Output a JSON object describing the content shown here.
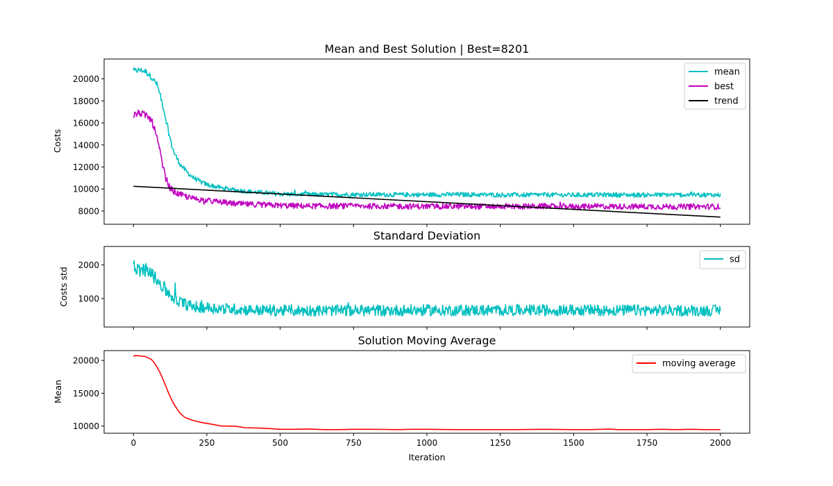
{
  "chart_data": [
    {
      "type": "line",
      "title": "Mean and Best Solution | Best=8201",
      "xlabel": "",
      "ylabel": "Costs",
      "xlim": [
        -100,
        2100
      ],
      "ylim": [
        6800,
        21800
      ],
      "yticks": [
        8000,
        10000,
        12000,
        14000,
        16000,
        18000,
        20000
      ],
      "xticks": [
        0,
        250,
        500,
        750,
        1000,
        1250,
        1500,
        1750,
        2000
      ],
      "show_xtick_labels": false,
      "grid": false,
      "legend_position": "top-right",
      "series": [
        {
          "name": "mean",
          "color": "#00bfbf",
          "noise": 260,
          "x": [
            0,
            20,
            40,
            60,
            80,
            90,
            100,
            110,
            120,
            130,
            140,
            160,
            180,
            200,
            225,
            250,
            275,
            300,
            350,
            400,
            450,
            500,
            600,
            700,
            800,
            900,
            1000,
            1100,
            1200,
            1300,
            1400,
            1500,
            1600,
            1700,
            1800,
            1900,
            2000
          ],
          "values": [
            20700,
            20800,
            20700,
            20200,
            19500,
            18600,
            17600,
            16400,
            15100,
            14000,
            13200,
            12200,
            11600,
            11100,
            10700,
            10400,
            10250,
            10100,
            9900,
            9750,
            9650,
            9550,
            9500,
            9500,
            9500,
            9480,
            9480,
            9500,
            9480,
            9450,
            9480,
            9450,
            9480,
            9460,
            9470,
            9470,
            9470
          ]
        },
        {
          "name": "best",
          "color": "#bf00bf",
          "noise": 330,
          "x": [
            0,
            20,
            40,
            60,
            70,
            80,
            90,
            100,
            110,
            120,
            130,
            150,
            175,
            200,
            250,
            300,
            350,
            400,
            500,
            600,
            800,
            1000,
            1200,
            1400,
            1600,
            1800,
            2000
          ],
          "values": [
            16700,
            16900,
            16700,
            16300,
            15600,
            14600,
            13400,
            12100,
            11000,
            10300,
            9900,
            9600,
            9350,
            9150,
            8950,
            8800,
            8650,
            8600,
            8500,
            8450,
            8450,
            8420,
            8420,
            8420,
            8420,
            8400,
            8400
          ]
        },
        {
          "name": "trend",
          "color": "#000000",
          "noise": 0,
          "x": [
            0,
            2000
          ],
          "values": [
            10250,
            7450
          ]
        }
      ]
    },
    {
      "type": "line",
      "title": "Standard Deviation",
      "xlabel": "",
      "ylabel": "Costs std",
      "xlim": [
        -100,
        2100
      ],
      "ylim": [
        150,
        2550
      ],
      "yticks": [
        1000,
        2000
      ],
      "xticks": [
        0,
        250,
        500,
        750,
        1000,
        1250,
        1500,
        1750,
        2000
      ],
      "show_xtick_labels": false,
      "grid": false,
      "legend_position": "top-right",
      "series": [
        {
          "name": "sd",
          "color": "#00bfbf",
          "noise": 210,
          "x": [
            0,
            20,
            40,
            60,
            80,
            100,
            120,
            140,
            160,
            180,
            200,
            250,
            300,
            400,
            500,
            700,
            1000,
            1300,
            1600,
            2000
          ],
          "values": [
            1950,
            1850,
            1850,
            1750,
            1550,
            1350,
            1150,
            1000,
            900,
            820,
            760,
            730,
            700,
            660,
            640,
            640,
            650,
            650,
            650,
            640
          ]
        }
      ]
    },
    {
      "type": "line",
      "title": "Solution Moving Average",
      "xlabel": "Iteration",
      "ylabel": "Mean",
      "xlim": [
        -100,
        2100
      ],
      "ylim": [
        8900,
        21500
      ],
      "yticks": [
        10000,
        15000,
        20000
      ],
      "xticks": [
        0,
        250,
        500,
        750,
        1000,
        1250,
        1500,
        1750,
        2000
      ],
      "show_xtick_labels": true,
      "grid": false,
      "legend_position": "top-right",
      "series": [
        {
          "name": "moving average",
          "color": "#ff0000",
          "noise": 0,
          "x": [
            0,
            5,
            20,
            40,
            60,
            70,
            80,
            90,
            100,
            110,
            120,
            130,
            140,
            150,
            160,
            175,
            200,
            225,
            250,
            275,
            300,
            350,
            380,
            420,
            470,
            500,
            550,
            600,
            650,
            700,
            750,
            800,
            850,
            900,
            950,
            1000,
            1100,
            1200,
            1300,
            1400,
            1500,
            1550,
            1600,
            1620,
            1650,
            1700,
            1750,
            1800,
            1850,
            1900,
            1950,
            2000
          ],
          "values": [
            20600,
            20750,
            20700,
            20600,
            20200,
            19700,
            19000,
            18200,
            17200,
            16100,
            15000,
            14000,
            13200,
            12500,
            11900,
            11300,
            10900,
            10600,
            10400,
            10200,
            10000,
            9950,
            9750,
            9700,
            9600,
            9500,
            9500,
            9550,
            9450,
            9450,
            9500,
            9500,
            9480,
            9450,
            9500,
            9500,
            9450,
            9450,
            9450,
            9500,
            9450,
            9450,
            9500,
            9550,
            9450,
            9450,
            9450,
            9500,
            9450,
            9500,
            9450,
            9450
          ]
        }
      ]
    }
  ]
}
